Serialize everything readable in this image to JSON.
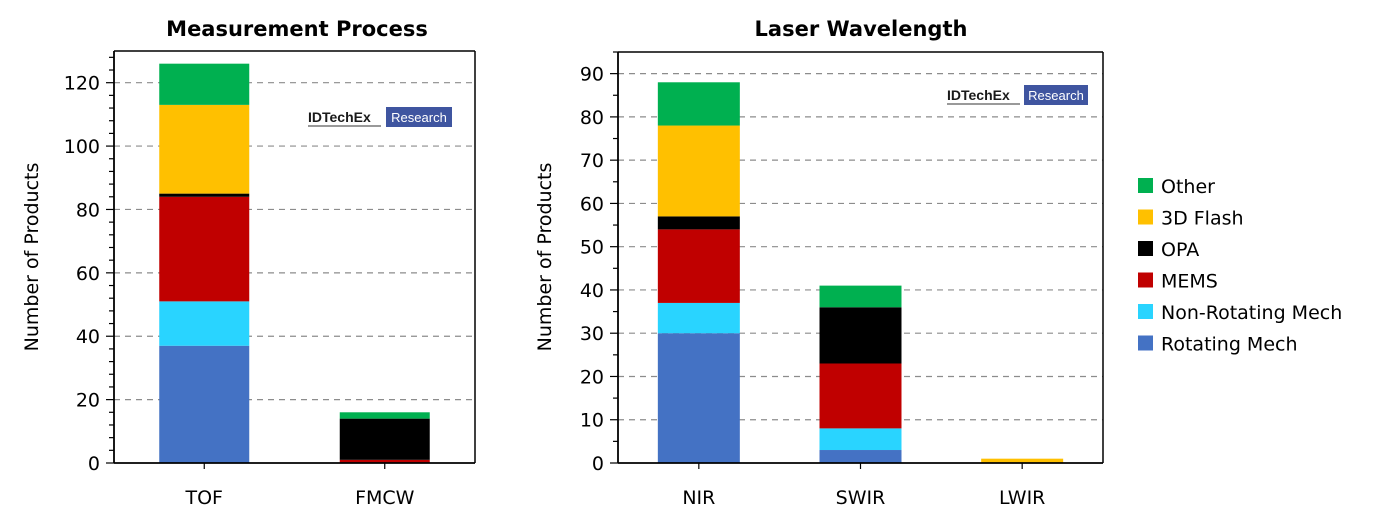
{
  "colors": {
    "Other": "#00b050",
    "3D Flash": "#ffc000",
    "OPA": "#000000",
    "MEMS": "#c00000",
    "Non-Rotating Mech": "#29d4ff",
    "Rotating Mech": "#4472c4",
    "watermark_bg": "#3f55a0",
    "grid": "#8c8c8c"
  },
  "watermark": {
    "brand": "IDTechEx",
    "tag": "Research"
  },
  "legend": {
    "placement": "right",
    "entries": [
      "Other",
      "3D Flash",
      "OPA",
      "MEMS",
      "Non-Rotating Mech",
      "Rotating Mech"
    ]
  },
  "chart_data": [
    {
      "type": "bar",
      "stacked": true,
      "title": "Measurement Process",
      "xlabel": "",
      "ylabel": "Number of Products",
      "ylim": [
        0,
        130
      ],
      "yticks": [
        0,
        20,
        40,
        60,
        80,
        100,
        120
      ],
      "minor_tick_step": 4,
      "grid": true,
      "categories": [
        "TOF",
        "FMCW"
      ],
      "series": [
        {
          "name": "Rotating Mech",
          "values": [
            37,
            0
          ]
        },
        {
          "name": "Non-Rotating Mech",
          "values": [
            14,
            0
          ]
        },
        {
          "name": "MEMS",
          "values": [
            33,
            1
          ]
        },
        {
          "name": "OPA",
          "values": [
            1,
            13
          ]
        },
        {
          "name": "3D Flash",
          "values": [
            28,
            0
          ]
        },
        {
          "name": "Other",
          "values": [
            13,
            2
          ]
        }
      ]
    },
    {
      "type": "bar",
      "stacked": true,
      "title": "Laser Wavelength",
      "xlabel": "",
      "ylabel": "Number of Products",
      "ylim": [
        0,
        95
      ],
      "yticks": [
        0,
        10,
        20,
        30,
        40,
        50,
        60,
        70,
        80,
        90
      ],
      "minor_tick_step": 5,
      "grid": true,
      "categories": [
        "NIR",
        "SWIR",
        "LWIR"
      ],
      "series": [
        {
          "name": "Rotating Mech",
          "values": [
            30,
            3,
            0
          ]
        },
        {
          "name": "Non-Rotating Mech",
          "values": [
            7,
            5,
            0
          ]
        },
        {
          "name": "MEMS",
          "values": [
            17,
            15,
            0
          ]
        },
        {
          "name": "OPA",
          "values": [
            3,
            13,
            0
          ]
        },
        {
          "name": "3D Flash",
          "values": [
            21,
            0,
            1
          ]
        },
        {
          "name": "Other",
          "values": [
            10,
            5,
            0
          ]
        }
      ]
    }
  ]
}
